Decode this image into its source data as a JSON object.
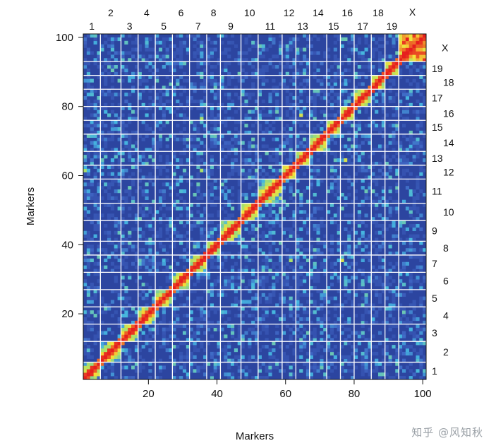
{
  "chart_data": {
    "type": "heatmap",
    "title": "",
    "xlabel": "Markers",
    "ylabel": "Markers",
    "xlim": [
      1,
      101
    ],
    "ylim": [
      1,
      101
    ],
    "x_ticks": [
      20,
      40,
      60,
      80,
      100
    ],
    "y_ticks": [
      20,
      40,
      60,
      80,
      100
    ],
    "grid": true,
    "colormap": [
      "#2b3f9c",
      "#3f66c4",
      "#45b6e0",
      "#a9e06b",
      "#f5e23a",
      "#f08a2a",
      "#e61e1e"
    ],
    "background_color": "#2c45a0",
    "gridline_color": "#ffffff",
    "chromosomes": [
      {
        "label": "1",
        "start": 1,
        "end": 6
      },
      {
        "label": "2",
        "start": 6,
        "end": 12
      },
      {
        "label": "3",
        "start": 12,
        "end": 17
      },
      {
        "label": "4",
        "start": 17,
        "end": 22
      },
      {
        "label": "5",
        "start": 22,
        "end": 27
      },
      {
        "label": "6",
        "start": 27,
        "end": 32
      },
      {
        "label": "7",
        "start": 32,
        "end": 37
      },
      {
        "label": "8",
        "start": 37,
        "end": 41
      },
      {
        "label": "9",
        "start": 41,
        "end": 47
      },
      {
        "label": "10",
        "start": 47,
        "end": 52
      },
      {
        "label": "11",
        "start": 52,
        "end": 59
      },
      {
        "label": "12",
        "start": 59,
        "end": 63
      },
      {
        "label": "13",
        "start": 63,
        "end": 67
      },
      {
        "label": "14",
        "start": 67,
        "end": 72
      },
      {
        "label": "15",
        "start": 72,
        "end": 76
      },
      {
        "label": "16",
        "start": 76,
        "end": 80
      },
      {
        "label": "17",
        "start": 80,
        "end": 85
      },
      {
        "label": "18",
        "start": 85,
        "end": 89
      },
      {
        "label": "19",
        "start": 89,
        "end": 93
      },
      {
        "label": "X",
        "start": 93,
        "end": 101
      }
    ],
    "hotspots": [
      {
        "x": 61,
        "y": 61,
        "value": 0.7
      },
      {
        "x": 64,
        "y": 77,
        "value": 0.6
      },
      {
        "x": 77,
        "y": 64,
        "value": 0.6
      },
      {
        "x": 61,
        "y": 35,
        "value": 0.5
      },
      {
        "x": 35,
        "y": 61,
        "value": 0.5
      },
      {
        "x": 76,
        "y": 35,
        "value": 0.6
      },
      {
        "x": 35,
        "y": 76,
        "value": 0.5
      },
      {
        "x": 1,
        "y": 61,
        "value": 0.5
      }
    ]
  },
  "watermark": "知乎 @风知秋"
}
